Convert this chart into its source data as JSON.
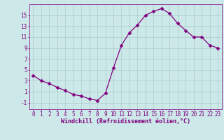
{
  "x": [
    0,
    1,
    2,
    3,
    4,
    5,
    6,
    7,
    8,
    9,
    10,
    11,
    12,
    13,
    14,
    15,
    16,
    17,
    18,
    19,
    20,
    21,
    22,
    23
  ],
  "y": [
    4.0,
    3.0,
    2.5,
    1.8,
    1.2,
    0.5,
    0.2,
    -0.3,
    -0.6,
    0.7,
    5.3,
    9.5,
    11.8,
    13.2,
    15.0,
    15.7,
    16.2,
    15.3,
    13.5,
    12.2,
    11.0,
    11.0,
    9.5,
    9.0
  ],
  "line_color": "#800080",
  "marker": "D",
  "marker_size": 2.5,
  "background_color": "#cce8e8",
  "grid_color": "#aacccc",
  "xlabel": "Windchill (Refroidissement éolien,°C)",
  "xlabel_fontsize": 6,
  "ylabel_ticks": [
    -1,
    1,
    3,
    5,
    7,
    9,
    11,
    13,
    15
  ],
  "xlim": [
    -0.5,
    23.5
  ],
  "ylim": [
    -2.2,
    17.0
  ],
  "tick_fontsize": 5.5,
  "tick_color": "#800080",
  "label_color": "#800080",
  "linewidth": 0.9
}
